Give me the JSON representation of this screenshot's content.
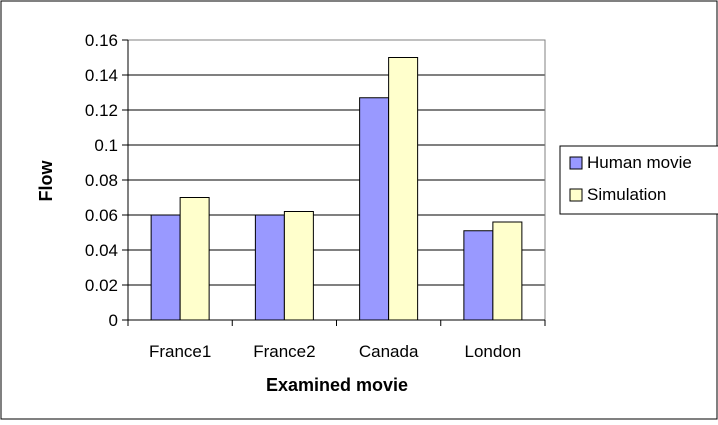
{
  "chart_data": {
    "type": "bar",
    "title": "",
    "xlabel": "Examined movie",
    "ylabel": "Flow",
    "categories": [
      "France1",
      "France2",
      "Canada",
      "London"
    ],
    "series": [
      {
        "name": "Human movie",
        "values": [
          0.06,
          0.06,
          0.127,
          0.051
        ],
        "color": "#9999ff"
      },
      {
        "name": "Simulation",
        "values": [
          0.07,
          0.062,
          0.15,
          0.056
        ],
        "color": "#ffffcc"
      }
    ],
    "ylim": [
      0,
      0.16
    ],
    "yticks": [
      "0",
      "0.02",
      "0.04",
      "0.06",
      "0.08",
      "0.1",
      "0.12",
      "0.14",
      "0.16"
    ],
    "grid": true,
    "legend_position": "right",
    "colors": {
      "border": "#000000",
      "gridline": "#000000",
      "background": "#ffffff"
    }
  }
}
